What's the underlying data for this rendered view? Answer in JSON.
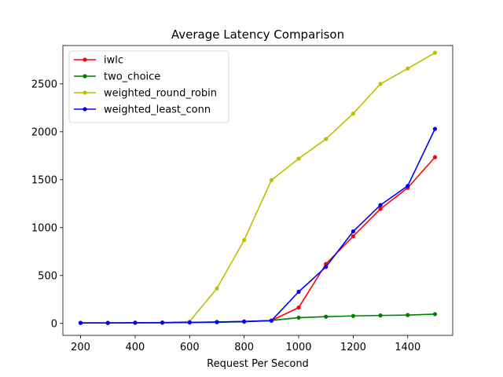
{
  "chart_data": {
    "type": "line",
    "title": "Average Latency Comparison",
    "xlabel": "Request Per Second",
    "ylabel": "",
    "xlim": [
      135,
      1565
    ],
    "ylim": [
      -125,
      2900
    ],
    "xticks": [
      200,
      400,
      600,
      800,
      1000,
      1200,
      1400
    ],
    "yticks": [
      0,
      500,
      1000,
      1500,
      2000,
      2500
    ],
    "grid": false,
    "legend_position": "top-left",
    "x": [
      200,
      300,
      400,
      500,
      600,
      700,
      800,
      900,
      1000,
      1100,
      1200,
      1300,
      1400,
      1500
    ],
    "series": [
      {
        "name": "iwlc",
        "color": "#ff0000",
        "values": [
          5,
          5,
          7,
          8,
          10,
          13,
          20,
          30,
          165,
          620,
          910,
          1195,
          1415,
          1735
        ]
      },
      {
        "name": "two_choice",
        "color": "#008000",
        "values": [
          5,
          5,
          6,
          8,
          10,
          12,
          17,
          30,
          60,
          70,
          78,
          83,
          87,
          97
        ]
      },
      {
        "name": "weighted_round_robin",
        "color": "#bfbf00",
        "values": [
          5,
          5,
          7,
          10,
          20,
          365,
          870,
          1495,
          1720,
          1925,
          2190,
          2500,
          2660,
          2825
        ]
      },
      {
        "name": "weighted_least_conn",
        "color": "#0000ff",
        "values": [
          5,
          5,
          7,
          8,
          10,
          15,
          20,
          28,
          330,
          590,
          960,
          1235,
          1435,
          2030
        ]
      }
    ]
  }
}
